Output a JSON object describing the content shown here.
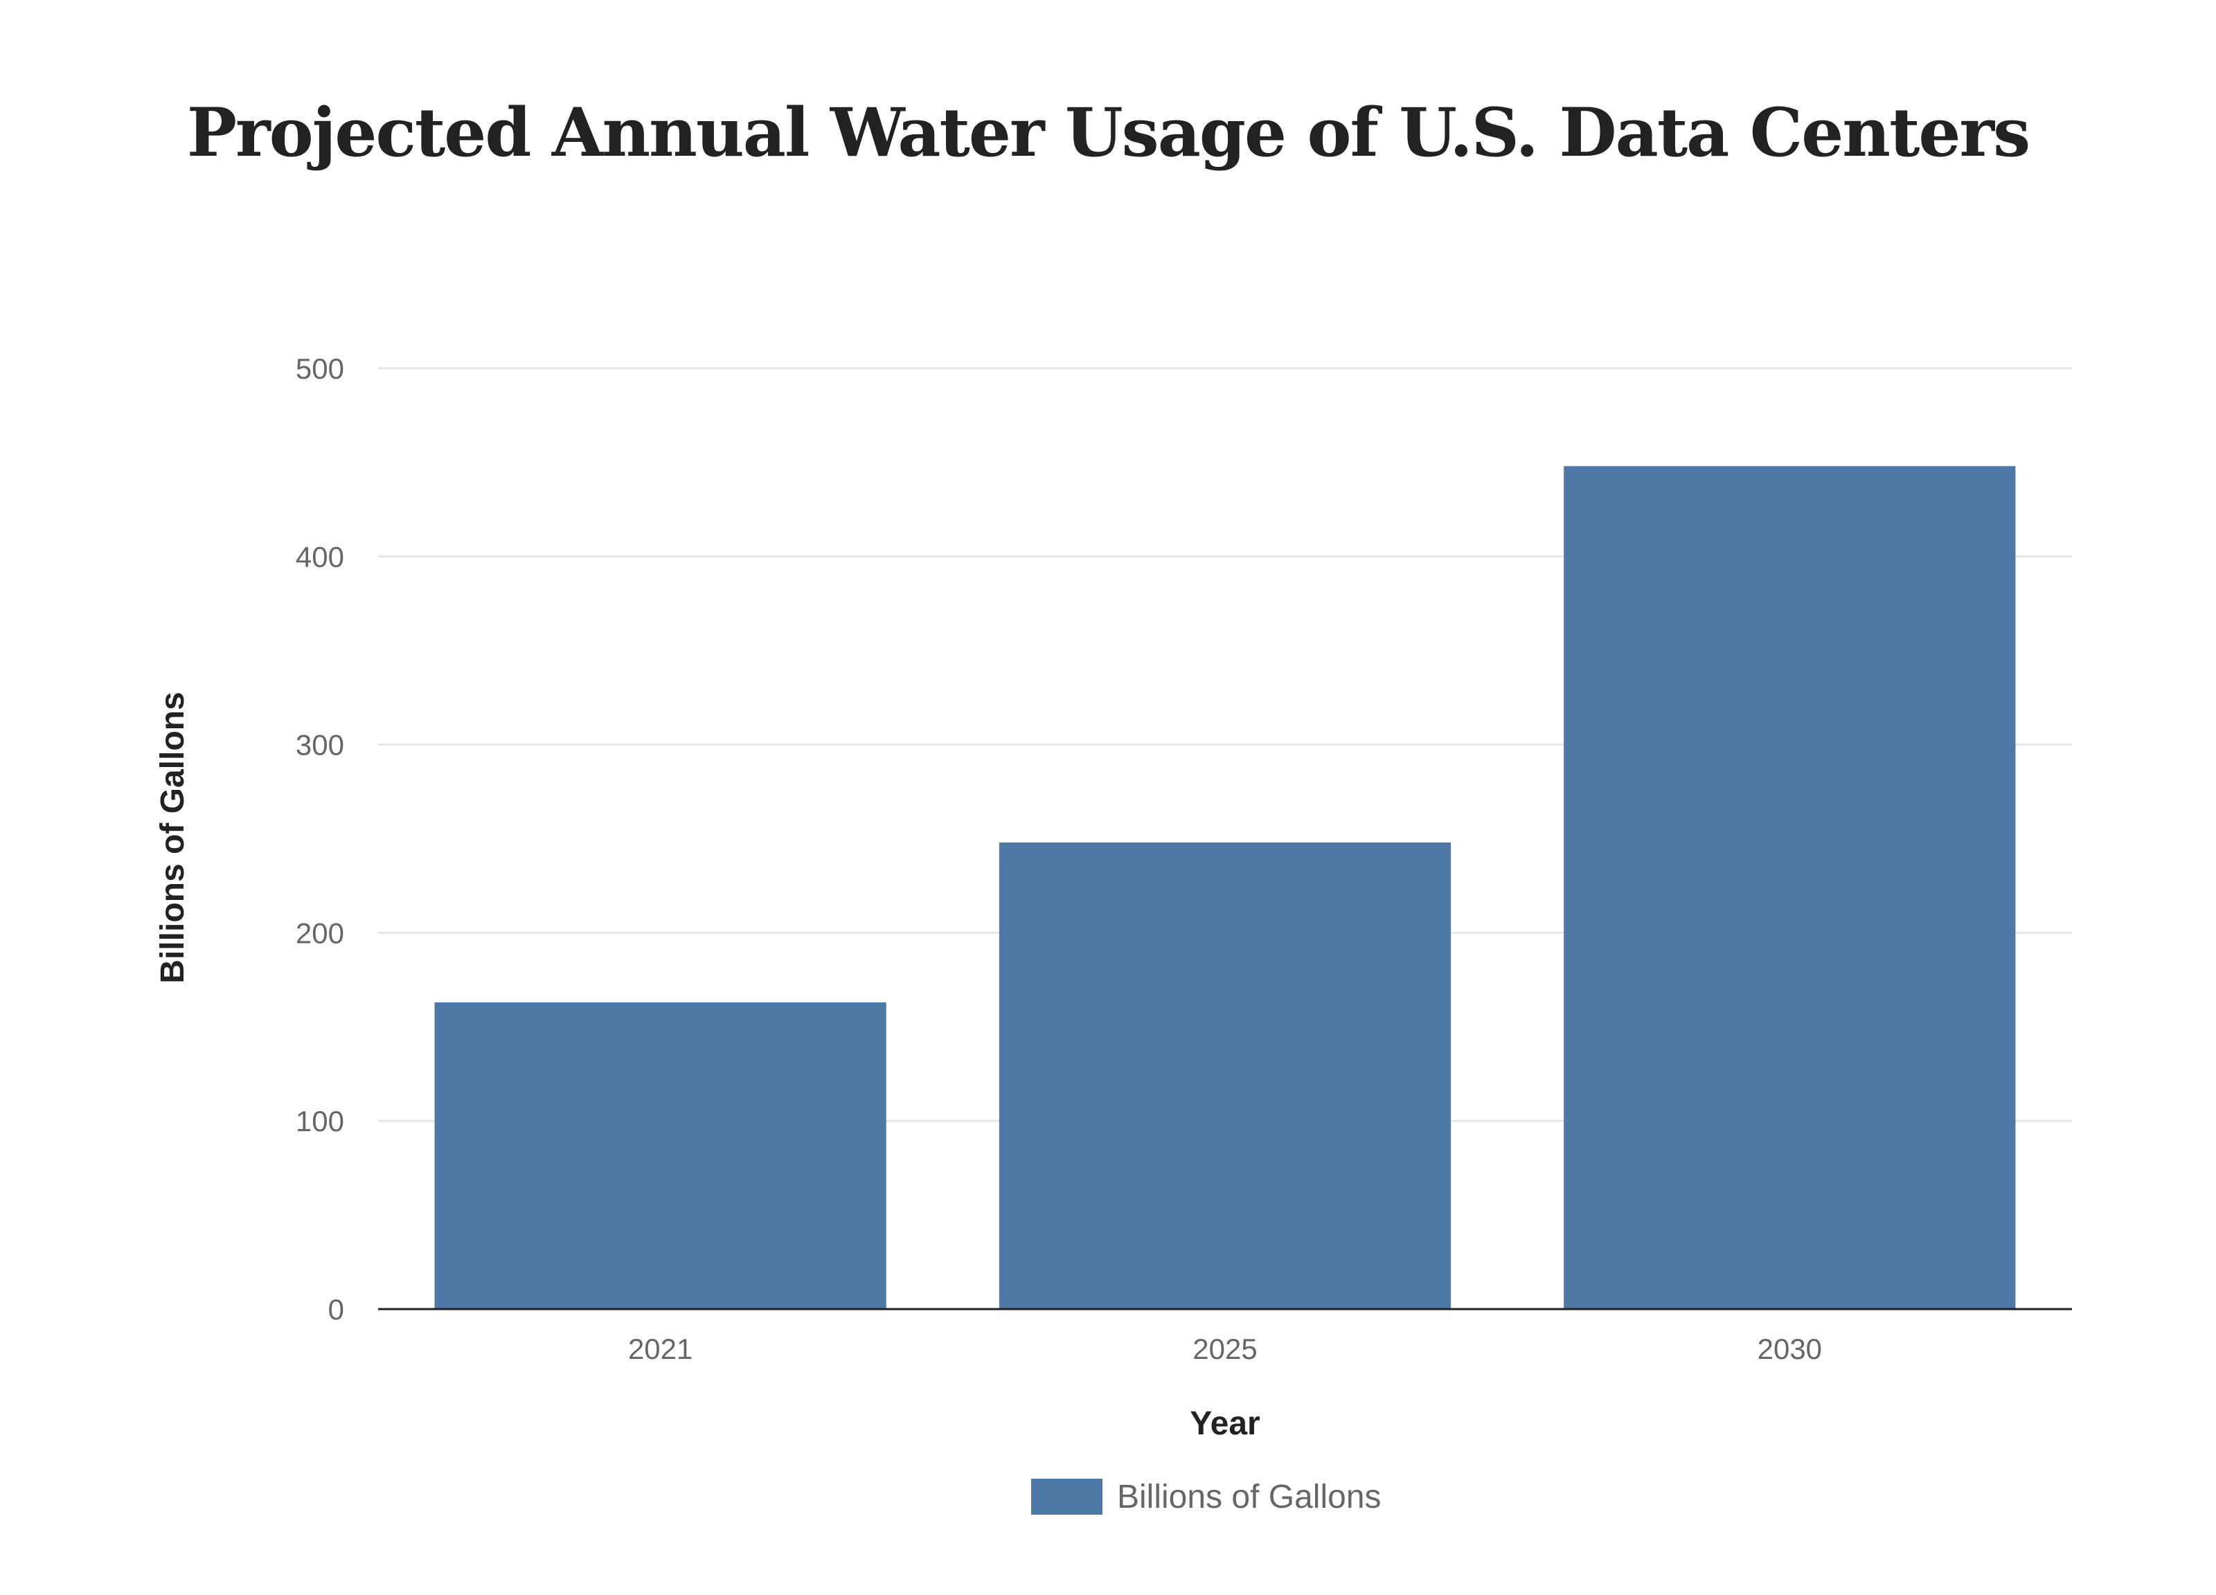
{
  "chart_data": {
    "type": "bar",
    "title": "Projected Annual Water Usage of U.S. Data Centers",
    "categories": [
      "2021",
      "2025",
      "2030"
    ],
    "series": [
      {
        "name": "Billions of Gallons",
        "values": [
          163,
          248,
          448
        ],
        "color": "#4e79a7"
      }
    ],
    "xlabel": "Year",
    "ylabel": "Billions of Gallons",
    "ylim": [
      0,
      500
    ],
    "yticks": [
      0,
      100,
      200,
      300,
      400,
      500
    ],
    "grid": true,
    "legend": "bottom-center"
  }
}
